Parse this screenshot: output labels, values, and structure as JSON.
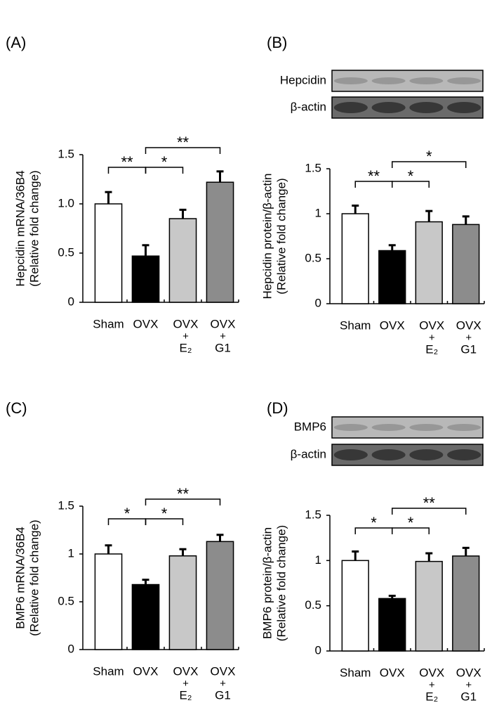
{
  "chart_data": [
    {
      "type": "bar",
      "panel": "(A)",
      "ylabel": [
        "Hepcidin mRNA/36B4",
        "(Relative fold change)"
      ],
      "categories": [
        [
          "Sham"
        ],
        [
          "OVX"
        ],
        [
          "OVX",
          "+",
          "E₂"
        ],
        [
          "OVX",
          "+",
          "G1"
        ]
      ],
      "values": [
        1.0,
        0.47,
        0.85,
        1.22
      ],
      "errors": [
        0.12,
        0.11,
        0.09,
        0.11
      ],
      "colors": [
        "#ffffff",
        "#000000",
        "#c8c8c8",
        "#8c8c8c"
      ],
      "ylim": [
        0,
        1.5
      ],
      "yticks": [
        0,
        0.5,
        {
          "value": 1,
          "label": "1.0"
        },
        1.5
      ],
      "significance": [
        "**",
        "*",
        "**"
      ]
    },
    {
      "type": "bar",
      "panel": "(B)",
      "blots": [
        "Hepcidin",
        "β-actin"
      ],
      "ylabel": [
        "Hepcidin protein/β-actin",
        "(Relative fold change)"
      ],
      "categories": [
        [
          "Sham"
        ],
        [
          "OVX"
        ],
        [
          "OVX",
          "+",
          "E₂"
        ],
        [
          "OVX",
          "+",
          "G1"
        ]
      ],
      "values": [
        1.0,
        0.59,
        0.91,
        0.88
      ],
      "errors": [
        0.09,
        0.06,
        0.12,
        0.09
      ],
      "colors": [
        "#ffffff",
        "#000000",
        "#c8c8c8",
        "#8c8c8c"
      ],
      "ylim": [
        0,
        1.5
      ],
      "yticks": [
        0,
        0.5,
        1,
        1.5
      ],
      "significance": [
        "**",
        "*",
        "*"
      ]
    },
    {
      "type": "bar",
      "panel": "(C)",
      "ylabel": [
        "BMP6 mRNA/36B4",
        "(Relative fold change)"
      ],
      "categories": [
        [
          "Sham"
        ],
        [
          "OVX"
        ],
        [
          "OVX",
          "+",
          "E₂"
        ],
        [
          "OVX",
          "+",
          "G1"
        ]
      ],
      "values": [
        1.0,
        0.68,
        0.98,
        1.13
      ],
      "errors": [
        0.09,
        0.05,
        0.07,
        0.07
      ],
      "colors": [
        "#ffffff",
        "#000000",
        "#c8c8c8",
        "#8c8c8c"
      ],
      "ylim": [
        0,
        1.5
      ],
      "yticks": [
        0,
        0.5,
        1,
        1.5
      ],
      "significance": [
        "*",
        "*",
        "**"
      ]
    },
    {
      "type": "bar",
      "panel": "(D)",
      "blots": [
        "BMP6",
        "β-actin"
      ],
      "ylabel": [
        "BMP6 protein/β-actin",
        "(Relative fold change)"
      ],
      "categories": [
        [
          "Sham"
        ],
        [
          "OVX"
        ],
        [
          "OVX",
          "+",
          "E₂"
        ],
        [
          "OVX",
          "+",
          "G1"
        ]
      ],
      "values": [
        1.0,
        0.58,
        0.99,
        1.05
      ],
      "errors": [
        0.1,
        0.03,
        0.09,
        0.09
      ],
      "colors": [
        "#ffffff",
        "#000000",
        "#c8c8c8",
        "#8c8c8c"
      ],
      "ylim": [
        0,
        1.5
      ],
      "yticks": [
        0,
        0.5,
        1,
        1.5
      ],
      "significance": [
        "*",
        "*",
        "**"
      ]
    }
  ]
}
